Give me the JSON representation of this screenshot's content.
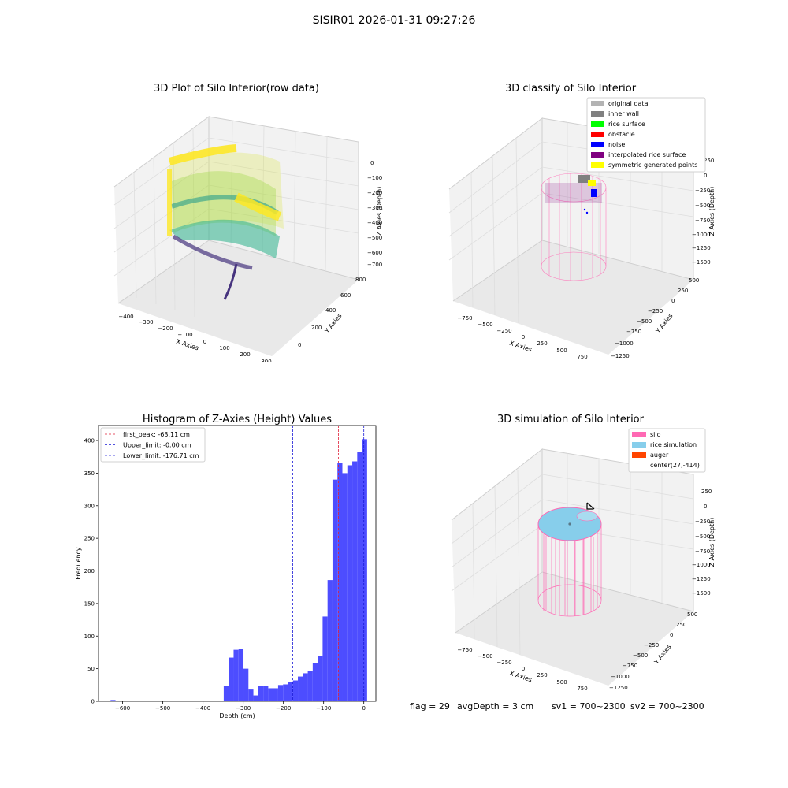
{
  "page_title": "SISIR01 2026-01-31 09:27:26",
  "status_line": {
    "flag": "flag = 29",
    "avg_depth": "avgDepth = 3 cm",
    "sv1": "sv1 = 700~2300",
    "sv2": "sv2 = 700~2300"
  },
  "colors": {
    "hist_bar": "#4d4dff",
    "first_peak_line": "#e0213a",
    "limit_lines": "#1a1ad6",
    "silo": "#ff69b4",
    "rice_simulation": "#87ceeb",
    "auger": "#ff4500",
    "classify_original": "#b3b3b3",
    "classify_inner_wall": "#808080",
    "classify_rice_surface": "#00ff00",
    "classify_obstacle": "#ff0000",
    "classify_noise": "#0000ff",
    "classify_interpolated": "#800080",
    "classify_symmetric": "#ffff00"
  },
  "chart_data": [
    {
      "type": "scatter3d",
      "title": "3D Plot of Silo Interior(row data)",
      "xlabel": "X Axies",
      "ylabel": "Y Axies",
      "zlabel": "Z Axies (Depth)",
      "x_ticks": [
        "−400",
        "−300",
        "−200",
        "−100",
        "0",
        "100",
        "200",
        "300"
      ],
      "y_ticks": [
        "0",
        "200",
        "400",
        "600",
        "800"
      ],
      "z_ticks": [
        "0",
        "−100",
        "−200",
        "−300",
        "−400",
        "−500",
        "−600",
        "−700"
      ],
      "colormap": "viridis"
    },
    {
      "type": "scatter3d",
      "title": "3D classify of Silo Interior",
      "xlabel": "X Axies",
      "ylabel": "Y Axies",
      "zlabel": "Z Axies (Depth)",
      "x_ticks": [
        "−750",
        "−500",
        "−250",
        "0",
        "250",
        "500",
        "750"
      ],
      "y_ticks": [
        "500",
        "250",
        "0",
        "−250",
        "−500",
        "−750",
        "−1000",
        "−1250"
      ],
      "z_ticks": [
        "250",
        "0",
        "−250",
        "−500",
        "−750",
        "−1000",
        "−1250",
        "−1500"
      ],
      "legend": [
        {
          "label": "original data",
          "color": "#b3b3b3"
        },
        {
          "label": "inner wall",
          "color": "#808080"
        },
        {
          "label": "rice surface",
          "color": "#00ff00"
        },
        {
          "label": "obstacle",
          "color": "#ff0000"
        },
        {
          "label": "noise",
          "color": "#0000ff"
        },
        {
          "label": "interpolated rice surface",
          "color": "#800080"
        },
        {
          "label": "symmetric generated points",
          "color": "#ffff00"
        }
      ],
      "legend_position": "top-right"
    },
    {
      "type": "bar",
      "title": "Histogram of Z-Axies (Height) Values",
      "xlabel": "Depth (cm)",
      "ylabel": "Frequency",
      "xlim": [
        -660,
        30
      ],
      "ylim": [
        0,
        423
      ],
      "x_ticks": [
        -600,
        -500,
        -400,
        -300,
        -200,
        -100,
        0
      ],
      "x_tick_labels": [
        "−600",
        "−500",
        "−400",
        "−300",
        "−200",
        "−100",
        "0"
      ],
      "y_ticks": [
        0,
        50,
        100,
        150,
        200,
        250,
        300,
        350,
        400
      ],
      "bin_width": 12.3,
      "bins": [
        {
          "x": -630.0,
          "v": 2
        },
        {
          "x": -503.0,
          "v": 1
        },
        {
          "x": -465.0,
          "v": 1
        },
        {
          "x": -415.0,
          "v": 1
        },
        {
          "x": -392.0,
          "v": 1
        },
        {
          "x": -355.0,
          "v": 1
        },
        {
          "x": -348.5,
          "v": 24
        },
        {
          "x": -336.2,
          "v": 67
        },
        {
          "x": -323.9,
          "v": 79
        },
        {
          "x": -311.6,
          "v": 80
        },
        {
          "x": -299.3,
          "v": 50
        },
        {
          "x": -287.0,
          "v": 18
        },
        {
          "x": -274.7,
          "v": 9
        },
        {
          "x": -262.4,
          "v": 24
        },
        {
          "x": -250.1,
          "v": 24
        },
        {
          "x": -237.8,
          "v": 20
        },
        {
          "x": -225.5,
          "v": 20
        },
        {
          "x": -213.2,
          "v": 25
        },
        {
          "x": -200.9,
          "v": 26
        },
        {
          "x": -188.6,
          "v": 30
        },
        {
          "x": -176.3,
          "v": 32
        },
        {
          "x": -164.0,
          "v": 38
        },
        {
          "x": -151.7,
          "v": 43
        },
        {
          "x": -139.4,
          "v": 46
        },
        {
          "x": -127.1,
          "v": 59
        },
        {
          "x": -114.8,
          "v": 70
        },
        {
          "x": -102.5,
          "v": 130
        },
        {
          "x": -90.2,
          "v": 186
        },
        {
          "x": -77.9,
          "v": 340
        },
        {
          "x": -65.6,
          "v": 366
        },
        {
          "x": -53.3,
          "v": 350
        },
        {
          "x": -41.0,
          "v": 362
        },
        {
          "x": -28.7,
          "v": 368
        },
        {
          "x": -16.4,
          "v": 383
        },
        {
          "x": -4.1,
          "v": 402
        }
      ],
      "vlines": [
        {
          "label": "first_peak: -63.11 cm",
          "x": -63.11,
          "color": "#e0213a"
        },
        {
          "label": "Upper_limit: -0.00 cm",
          "x": 0.0,
          "color": "#1a1ad6"
        },
        {
          "label": "Lower_limit: -176.71 cm",
          "x": -176.71,
          "color": "#1a1ad6"
        }
      ],
      "legend_position": "top-left"
    },
    {
      "type": "surface3d",
      "title": "3D simulation of Silo Interior",
      "xlabel": "X Axies",
      "ylabel": "Y Axies",
      "zlabel": "Z Axies (Depth)",
      "x_ticks": [
        "−750",
        "−500",
        "−250",
        "0",
        "250",
        "500",
        "750"
      ],
      "y_ticks": [
        "500",
        "250",
        "0",
        "−250",
        "−500",
        "−750",
        "−1000",
        "−1250"
      ],
      "z_ticks": [
        "250",
        "0",
        "−250",
        "−500",
        "−750",
        "−1000",
        "−1250",
        "−1500"
      ],
      "legend": [
        {
          "label": "silo",
          "color": "#ff69b4"
        },
        {
          "label": "rice simulation",
          "color": "#87ceeb"
        },
        {
          "label": "auger",
          "color": "#ff4500"
        },
        {
          "label": "center(27,-414)",
          "color": ""
        }
      ],
      "legend_position": "top-right"
    }
  ]
}
